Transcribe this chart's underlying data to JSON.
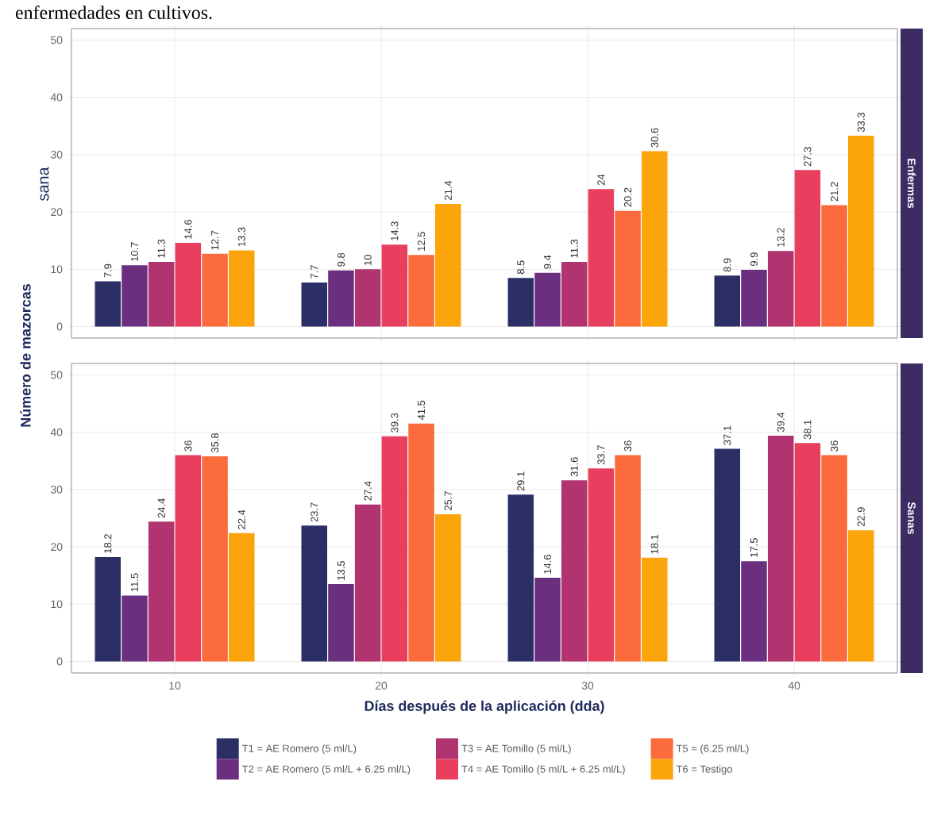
{
  "chart_data": [
    {
      "type": "bar",
      "annotations": [
        "Enfermas",
        "enfermedades en cultivos.",
        "sana"
      ],
      "categories": [
        "10",
        "20",
        "30",
        "40"
      ],
      "ylim": [
        -2,
        52
      ],
      "yticks": [
        0,
        10,
        20,
        30,
        40,
        50
      ],
      "grid": true,
      "data_labels": true,
      "tick_labels": "y",
      "series": [
        {
          "color": "#2c2f66",
          "values": [
            7.9,
            7.7,
            8.5,
            8.9
          ]
        },
        {
          "color": "#6b2f7f",
          "values": [
            10.7,
            9.8,
            9.4,
            9.9
          ]
        },
        {
          "color": "#b1336f",
          "values": [
            11.3,
            10,
            11.3,
            13.2
          ]
        },
        {
          "color": "#e83f5f",
          "values": [
            14.6,
            14.3,
            24,
            27.3
          ]
        },
        {
          "color": "#fb6b3b",
          "values": [
            12.7,
            12.5,
            20.2,
            21.2
          ]
        },
        {
          "color": "#fca50a",
          "values": [
            13.3,
            21.4,
            30.6,
            33.3
          ]
        }
      ]
    },
    {
      "type": "bar",
      "annotations": [
        "Sanas"
      ],
      "xlabel": "Días después de la aplicación (dda)",
      "ylabel": "Número de mazorcas",
      "categories": [
        "10",
        "20",
        "30",
        "40"
      ],
      "ylim": [
        -2,
        52
      ],
      "yticks": [
        0,
        10,
        20,
        30,
        40,
        50
      ],
      "grid": true,
      "data_labels": true,
      "legend": "bottom",
      "series": [
        {
          "name": "T1 = AE Romero (5 ml/L)",
          "color": "#2c2f66",
          "values": [
            18.2,
            23.7,
            29.1,
            37.1
          ]
        },
        {
          "name": "T2 = AE Romero (5 ml/L + 6.25 ml/L)",
          "color": "#6b2f7f",
          "values": [
            11.5,
            13.5,
            14.6,
            17.5
          ]
        },
        {
          "name": "T3 = AE Tomillo (5 ml/L)",
          "color": "#b1336f",
          "values": [
            24.4,
            27.4,
            31.6,
            39.4
          ]
        },
        {
          "name": "T4 = AE Tomillo (5 ml/L + 6.25 ml/L)",
          "color": "#e83f5f",
          "values": [
            36,
            39.3,
            33.7,
            38.1
          ]
        },
        {
          "name": "T5 = (6.25 ml/L)",
          "color": "#fb6b3b",
          "values": [
            35.8,
            41.5,
            36,
            36
          ]
        },
        {
          "name": "T6 = Testigo",
          "color": "#fca50a",
          "values": [
            22.4,
            25.7,
            18.1,
            22.9
          ]
        }
      ]
    }
  ]
}
